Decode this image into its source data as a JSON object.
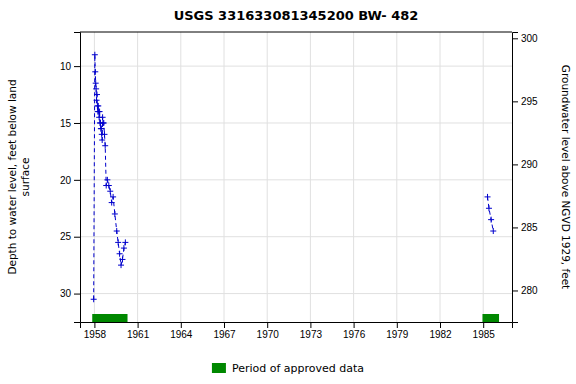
{
  "chart_data": {
    "type": "line",
    "title": "USGS 331633081345200 BW- 482",
    "y_label": "Depth to water level, feet below land\nsurface",
    "y2_label": "Groundwater level above NGVD 1929, feet",
    "xlim": [
      1957.0,
      1987.0
    ],
    "xticks": [
      1958,
      1961,
      1964,
      1967,
      1970,
      1973,
      1976,
      1979,
      1982,
      1985
    ],
    "ylim": [
      32.5,
      7.0
    ],
    "yticks": [
      10,
      15,
      20,
      25,
      30
    ],
    "y2lim": [
      277.5,
      300.5
    ],
    "y2ticks": [
      280,
      285,
      290,
      295,
      300
    ],
    "grid": true,
    "legend": "bottom",
    "series": [
      {
        "color": "#0000cc",
        "marker": "plus",
        "line_style": "dashed",
        "x": [
          1957.95,
          1958.03,
          1958.06,
          1958.09,
          1958.12,
          1958.15,
          1958.18,
          1958.21,
          1958.24,
          1958.27,
          1958.3,
          1958.33,
          1958.36,
          1958.39,
          1958.42,
          1958.45,
          1958.48,
          1958.51,
          1958.54,
          1958.57,
          1958.6,
          1958.65,
          1958.7,
          1958.75,
          1958.82,
          1958.9,
          1959.0,
          1959.1,
          1959.2,
          1959.3,
          1959.42,
          1959.55,
          1959.65,
          1959.75,
          1959.85,
          1959.95,
          1960.05,
          1960.15
        ],
        "values": [
          30.5,
          9.0,
          10.5,
          11.5,
          12.0,
          13.0,
          12.5,
          13.5,
          14.0,
          13.5,
          14.0,
          14.5,
          14.0,
          15.0,
          15.0,
          15.5,
          15.5,
          16.0,
          16.5,
          14.5,
          15.0,
          15.0,
          16.0,
          17.0,
          20.5,
          20.0,
          20.5,
          21.0,
          22.0,
          21.5,
          23.0,
          24.5,
          25.5,
          26.5,
          27.5,
          27.0,
          26.0,
          25.5
        ]
      },
      {
        "color": "#0000cc",
        "marker": "plus",
        "line_style": "dashed",
        "x": [
          1985.3,
          1985.4,
          1985.55,
          1985.7
        ],
        "values": [
          21.5,
          22.5,
          23.5,
          24.5
        ]
      }
    ],
    "bands": {
      "name": "Period of approved data",
      "color": "#008800",
      "ranges": [
        [
          1957.85,
          1960.3
        ],
        [
          1984.95,
          1986.1
        ]
      ]
    }
  }
}
